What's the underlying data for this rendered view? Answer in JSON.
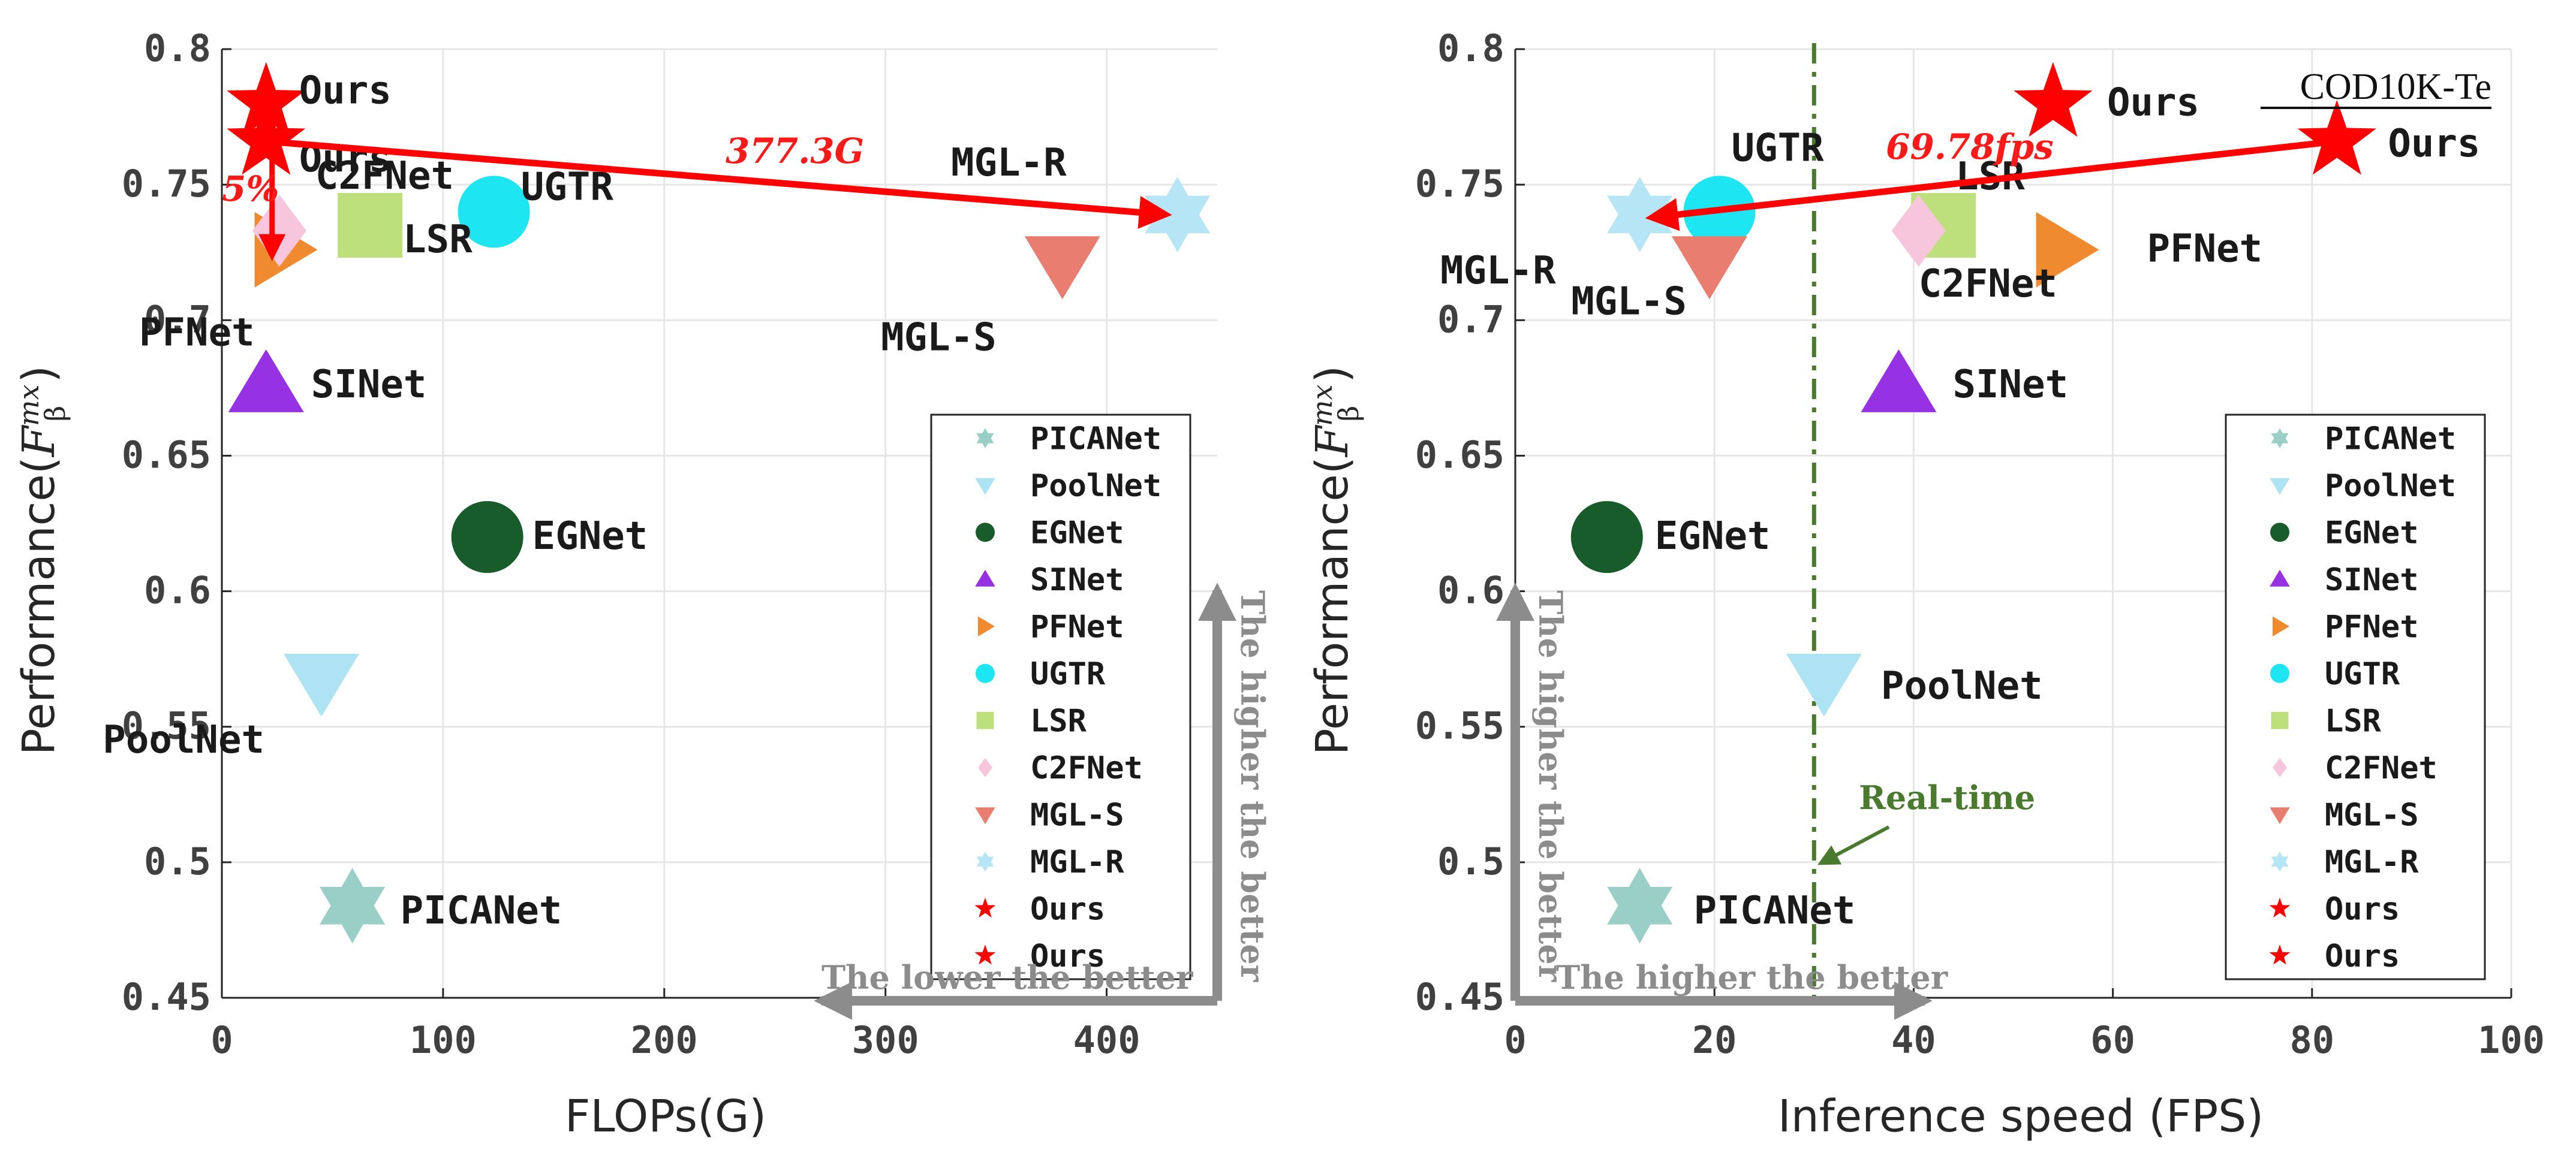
{
  "chart_data": [
    {
      "type": "scatter",
      "xlabel": "FLOPs(G)",
      "ylabel": "Performance",
      "xlim": [
        0,
        450
      ],
      "ylim": [
        0.45,
        0.8
      ],
      "xticks": [
        0,
        100,
        200,
        300,
        400
      ],
      "yticks": [
        0.45,
        0.5,
        0.55,
        0.6,
        0.65,
        0.7,
        0.75,
        0.8
      ],
      "grid": true,
      "legend_position": "bottom-right",
      "points": [
        {
          "name": "PICANet",
          "x": 59,
          "y": 0.484,
          "marker": "hexagram",
          "color": "#99cfc6",
          "label": "PICANet"
        },
        {
          "name": "PoolNet",
          "x": 45,
          "y": 0.567,
          "marker": "triangle-down",
          "color": "#aee3f3",
          "label": "PoolNet"
        },
        {
          "name": "EGNet",
          "x": 120,
          "y": 0.62,
          "marker": "circle",
          "color": "#175c2a",
          "label": "EGNet"
        },
        {
          "name": "SINet",
          "x": 20,
          "y": 0.676,
          "marker": "triangle-up",
          "color": "#9632e3",
          "label": "SINet"
        },
        {
          "name": "PFNet",
          "x": 27,
          "y": 0.726,
          "marker": "triangle-right",
          "color": "#f08a2e",
          "label": "PFNet"
        },
        {
          "name": "UGTR",
          "x": 123,
          "y": 0.74,
          "marker": "circle",
          "color": "#1de6f2",
          "label": "UGTR"
        },
        {
          "name": "LSR",
          "x": 67,
          "y": 0.735,
          "marker": "square",
          "color": "#bee07c",
          "label": "LSR"
        },
        {
          "name": "C2FNet",
          "x": 26,
          "y": 0.733,
          "marker": "diamond",
          "color": "#f7c6dc",
          "label": "C2FNet"
        },
        {
          "name": "MGL-S",
          "x": 380,
          "y": 0.721,
          "marker": "triangle-down",
          "color": "#e87d70",
          "label": "MGL-S"
        },
        {
          "name": "MGL-R",
          "x": 432,
          "y": 0.739,
          "marker": "hexagram",
          "color": "#b6e5f5",
          "label": "MGL-R"
        },
        {
          "name": "Ours",
          "x": 20,
          "y": 0.78,
          "marker": "pentagram",
          "color": "#ff0000",
          "label": "Ours"
        },
        {
          "name": "Ours",
          "x": 20,
          "y": 0.766,
          "marker": "pentagram",
          "color": "#ff0000",
          "label": "Ours"
        }
      ],
      "legend": [
        "PICANet",
        "PoolNet",
        "EGNet",
        "SINet",
        "PFNet",
        "UGTR",
        "LSR",
        "C2FNet",
        "MGL-S",
        "MGL-R",
        "Ours",
        "Ours"
      ],
      "annotations": {
        "flops_gap": "377.3G",
        "perf_gap": "5%",
        "hint_x": "The lower the better",
        "hint_y": "The higher the better"
      }
    },
    {
      "type": "scatter",
      "xlabel": "Inference speed (FPS)",
      "ylabel": "Performance",
      "xlim": [
        0,
        100
      ],
      "ylim": [
        0.45,
        0.8
      ],
      "xticks": [
        0,
        20,
        40,
        60,
        80,
        100
      ],
      "yticks": [
        0.45,
        0.5,
        0.55,
        0.6,
        0.65,
        0.7,
        0.75,
        0.8
      ],
      "grid": true,
      "legend_position": "bottom-right",
      "title": "COD10K-Te",
      "points": [
        {
          "name": "PICANet",
          "x": 12.5,
          "y": 0.484,
          "marker": "hexagram",
          "color": "#99cfc6",
          "label": "PICANet"
        },
        {
          "name": "PoolNet",
          "x": 31,
          "y": 0.567,
          "marker": "triangle-down",
          "color": "#aee3f3",
          "label": "PoolNet"
        },
        {
          "name": "EGNet",
          "x": 9.2,
          "y": 0.62,
          "marker": "circle",
          "color": "#175c2a",
          "label": "EGNet"
        },
        {
          "name": "SINet",
          "x": 38.5,
          "y": 0.676,
          "marker": "triangle-up",
          "color": "#9632e3",
          "label": "SINet"
        },
        {
          "name": "PFNet",
          "x": 55,
          "y": 0.726,
          "marker": "triangle-right",
          "color": "#f08a2e",
          "label": "PFNet"
        },
        {
          "name": "UGTR",
          "x": 20.5,
          "y": 0.74,
          "marker": "circle",
          "color": "#1de6f2",
          "label": "UGTR"
        },
        {
          "name": "LSR",
          "x": 43,
          "y": 0.735,
          "marker": "square",
          "color": "#bee07c",
          "label": "LSR"
        },
        {
          "name": "C2FNet",
          "x": 40.5,
          "y": 0.733,
          "marker": "diamond",
          "color": "#f7c6dc",
          "label": "C2FNet"
        },
        {
          "name": "MGL-S",
          "x": 19.5,
          "y": 0.721,
          "marker": "triangle-down",
          "color": "#e87d70",
          "label": "MGL-S"
        },
        {
          "name": "MGL-R",
          "x": 12.5,
          "y": 0.739,
          "marker": "hexagram",
          "color": "#b6e5f5",
          "label": "MGL-R"
        },
        {
          "name": "Ours",
          "x": 54,
          "y": 0.78,
          "marker": "pentagram",
          "color": "#ff0000",
          "label": "Ours"
        },
        {
          "name": "Ours",
          "x": 82.5,
          "y": 0.766,
          "marker": "pentagram",
          "color": "#ff0000",
          "label": "Ours"
        }
      ],
      "legend": [
        "PICANet",
        "PoolNet",
        "EGNet",
        "SINet",
        "PFNet",
        "UGTR",
        "LSR",
        "C2FNet",
        "MGL-S",
        "MGL-R",
        "Ours",
        "Ours"
      ],
      "realtime_x": 30,
      "annotations": {
        "speed_gap": "69.78fps",
        "realtime": "Real-time",
        "hint_x": "The higher the better",
        "hint_y": "The higher the better"
      }
    }
  ]
}
